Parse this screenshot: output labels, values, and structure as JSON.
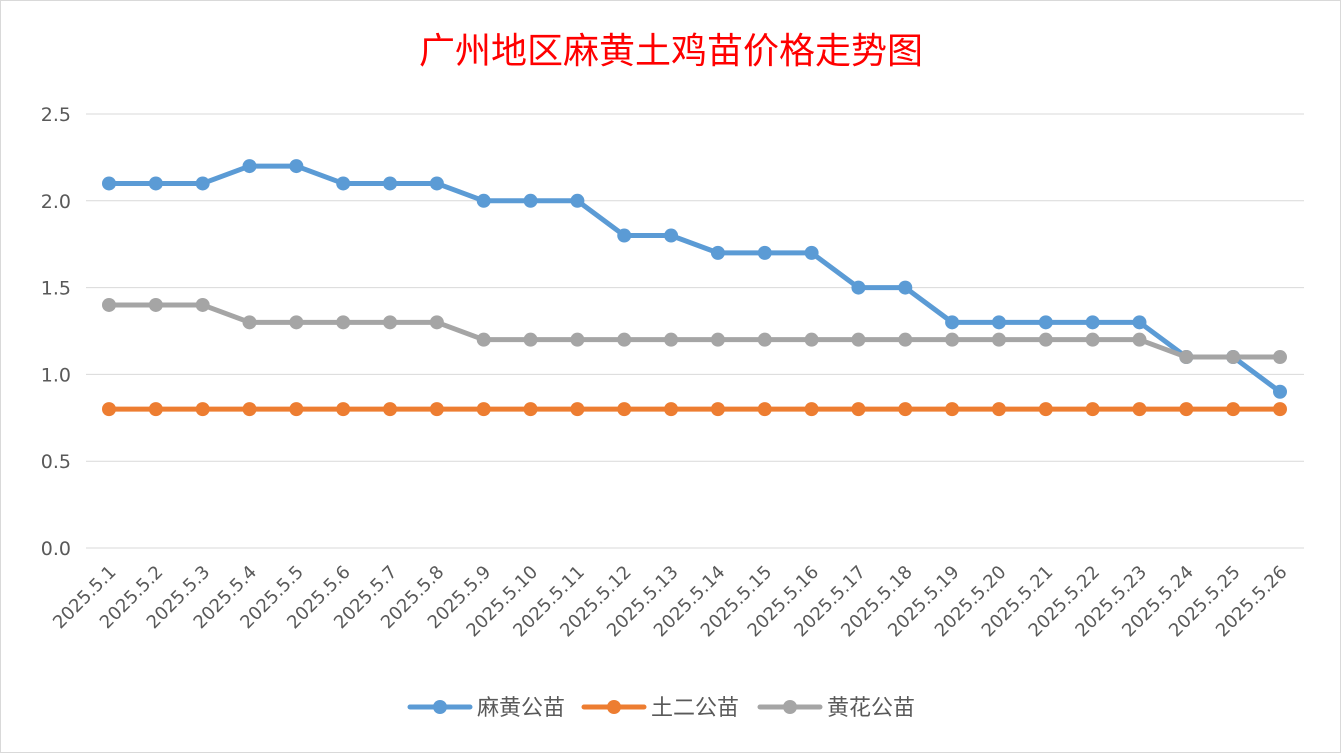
{
  "chart_data": {
    "type": "line",
    "title": "广州地区麻黄土鸡苗价格走势图",
    "xlabel": "",
    "ylabel": "",
    "ylim": [
      0,
      2.5
    ],
    "yticks": [
      "0.0",
      "0.5",
      "1.0",
      "1.5",
      "2.0",
      "2.5"
    ],
    "ytick_values": [
      0,
      0.5,
      1.0,
      1.5,
      2.0,
      2.5
    ],
    "grid": true,
    "legend_position": "bottom",
    "categories": [
      "2025.5.1",
      "2025.5.2",
      "2025.5.3",
      "2025.5.4",
      "2025.5.5",
      "2025.5.6",
      "2025.5.7",
      "2025.5.8",
      "2025.5.9",
      "2025.5.10",
      "2025.5.11",
      "2025.5.12",
      "2025.5.13",
      "2025.5.14",
      "2025.5.15",
      "2025.5.16",
      "2025.5.17",
      "2025.5.18",
      "2025.5.19",
      "2025.5.20",
      "2025.5.21",
      "2025.5.22",
      "2025.5.23",
      "2025.5.24",
      "2025.5.25",
      "2025.5.26"
    ],
    "series": [
      {
        "name": "麻黄公苗",
        "color": "#5b9bd5",
        "values": [
          2.1,
          2.1,
          2.1,
          2.2,
          2.2,
          2.1,
          2.1,
          2.1,
          2.0,
          2.0,
          2.0,
          1.8,
          1.8,
          1.7,
          1.7,
          1.7,
          1.5,
          1.5,
          1.3,
          1.3,
          1.3,
          1.3,
          1.3,
          1.1,
          1.1,
          0.9
        ]
      },
      {
        "name": "土二公苗",
        "color": "#ed7d31",
        "values": [
          0.8,
          0.8,
          0.8,
          0.8,
          0.8,
          0.8,
          0.8,
          0.8,
          0.8,
          0.8,
          0.8,
          0.8,
          0.8,
          0.8,
          0.8,
          0.8,
          0.8,
          0.8,
          0.8,
          0.8,
          0.8,
          0.8,
          0.8,
          0.8,
          0.8,
          0.8
        ]
      },
      {
        "name": "黄花公苗",
        "color": "#a5a5a5",
        "values": [
          1.4,
          1.4,
          1.4,
          1.3,
          1.3,
          1.3,
          1.3,
          1.3,
          1.2,
          1.2,
          1.2,
          1.2,
          1.2,
          1.2,
          1.2,
          1.2,
          1.2,
          1.2,
          1.2,
          1.2,
          1.2,
          1.2,
          1.2,
          1.1,
          1.1,
          1.1
        ]
      }
    ]
  }
}
